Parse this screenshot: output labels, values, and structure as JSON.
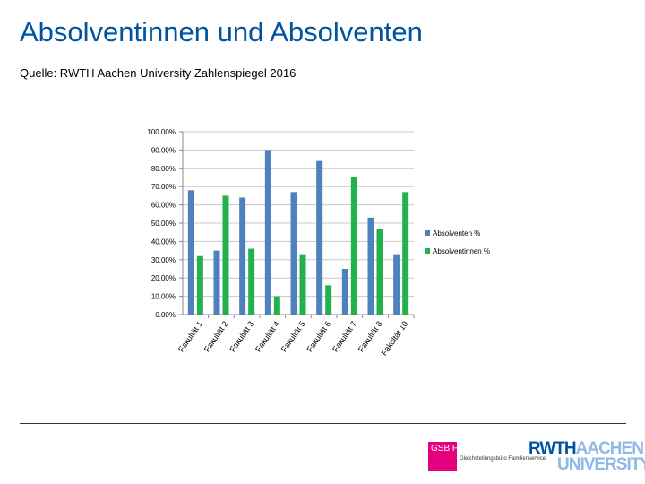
{
  "title": "Absolventinnen und Absolventen",
  "source": "Quelle: RWTH Aachen University Zahlenspiegel 2016",
  "chart_data": {
    "type": "bar",
    "categories": [
      "Fakultät 1",
      "Fakultät 2",
      "Fakultät 3",
      "Fakultät 4",
      "Fakultät 5",
      "Fakultät 6",
      "Fakultät 7",
      "Fakultät 8",
      "Fakultät 10"
    ],
    "series": [
      {
        "name": "Absolventen %",
        "values": [
          68,
          35,
          64,
          90,
          67,
          84,
          25,
          53,
          33
        ],
        "color": "#4f81bd"
      },
      {
        "name": "Absolventinnen %",
        "values": [
          32,
          65,
          36,
          10,
          33,
          16,
          75,
          47,
          67
        ],
        "color": "#22b14c"
      }
    ],
    "ylim": [
      0,
      100
    ],
    "yticks": [
      "0.00%",
      "10.00%",
      "20.00%",
      "30.00%",
      "40.00%",
      "50.00%",
      "60.00%",
      "70.00%",
      "80.00%",
      "90.00%",
      "100.00%"
    ],
    "grid": true,
    "legend_position": "right",
    "title": "",
    "xlabel": "",
    "ylabel": ""
  },
  "logos": {
    "gsb_text": "GSB FS",
    "gsb_subtitle": "Gleichstellungsbüro Familienservice",
    "rwth_line1_a": "RWTH",
    "rwth_line1_b": "AACHEN",
    "rwth_line2": "UNIVERSITY"
  }
}
